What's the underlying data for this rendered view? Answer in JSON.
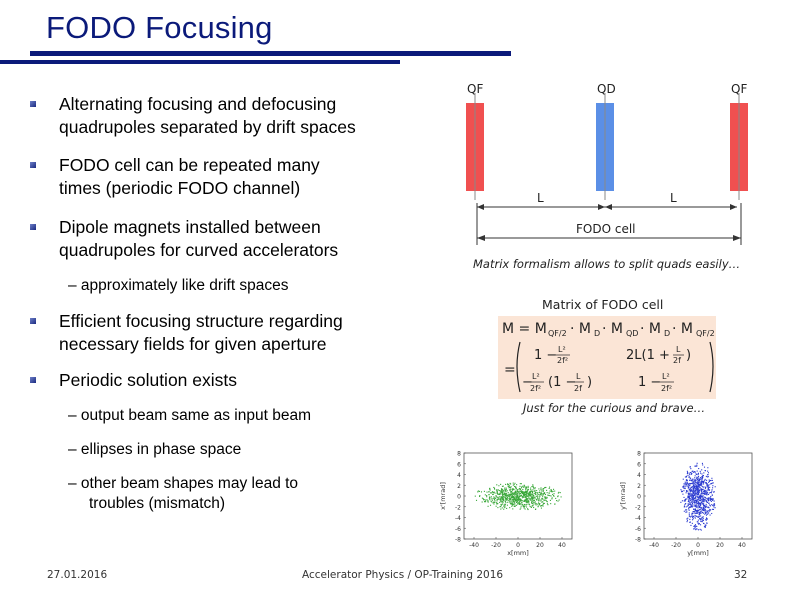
{
  "title": "FODO Focusing",
  "bullets": [
    {
      "lines": [
        "Alternating focusing and defocusing",
        "quadrupoles separated by drift spaces"
      ]
    },
    {
      "lines": [
        "FODO cell can be repeated many",
        "times (periodic FODO channel)"
      ]
    },
    {
      "lines": [
        "Dipole magnets installed between",
        "quadrupoles for curved accelerators"
      ]
    },
    {
      "lines": [
        "Efficient focusing structure regarding",
        "necessary fields for given aperture"
      ]
    },
    {
      "lines": [
        "Periodic solution exists"
      ]
    }
  ],
  "subbullets": {
    "drift": "– approximately like drift spaces",
    "output": "– output beam same as input beam",
    "ellipses": "– ellipses in phase space",
    "other": [
      "– other beam shapes may lead to",
      "troubles (mismatch)"
    ]
  },
  "lattice": {
    "qf_left": "QF",
    "qd": "QD",
    "qf_right": "QF",
    "l1": "L",
    "l2": "L",
    "cell": "FODO cell",
    "colors": {
      "qf": "#f05050",
      "qd": "#5b8fe6"
    }
  },
  "matrix_text": {
    "formalism": "Matrix formalism allows to split quads easily…",
    "matrix_title": "Matrix of FODO cell",
    "curious": "Just for the curious and brave…"
  },
  "plots": {
    "left": {
      "ylabel": "x'[mrad]",
      "xlabel": "x[mm]",
      "yticks": [
        "8",
        "6",
        "4",
        "2",
        "0",
        "-2",
        "-4",
        "-6",
        "-8"
      ],
      "xticks": [
        "-40",
        "-20",
        "0",
        "20",
        "40"
      ],
      "color": "#3aa83a"
    },
    "right": {
      "ylabel": "y'[mrad]",
      "xlabel": "y[mm]",
      "yticks": [
        "8",
        "6",
        "4",
        "2",
        "0",
        "-2",
        "-4",
        "-6",
        "-8"
      ],
      "xticks": [
        "-40",
        "-20",
        "0",
        "20",
        "40"
      ],
      "color": "#2a3ad0"
    }
  },
  "footer": {
    "date": "27.01.2016",
    "event": "Accelerator Physics / OP-Training 2016",
    "page": "32"
  }
}
